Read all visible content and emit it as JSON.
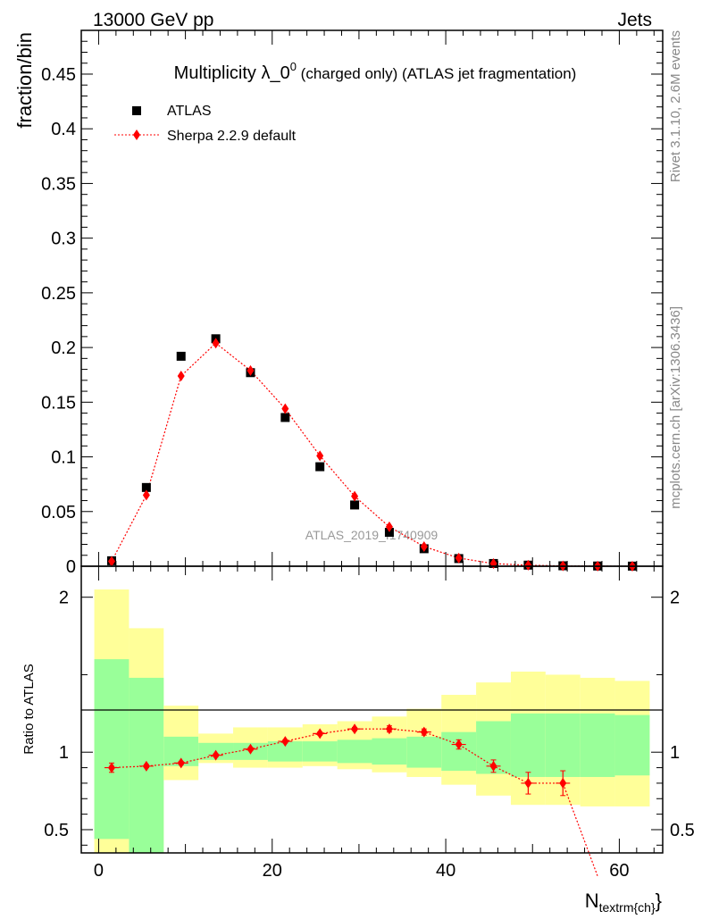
{
  "header": {
    "left": "13000 GeV pp",
    "right": "Jets"
  },
  "side_labels": {
    "rivet": "Rivet 3.1.10,  2.6M events",
    "mcplots": "mcplots.cern.ch [arXiv:1306.3436]"
  },
  "colors": {
    "data": "#000000",
    "mc": "#ff0000",
    "band_inner": "#99ff99",
    "band_outer": "#ffff99"
  },
  "chart_data": [
    {
      "type": "scatter",
      "title": "Multiplicity λ_0^0 (charged only) (ATLAS jet fragmentation)",
      "title_main": "Multiplicity λ_0",
      "title_sup": "0",
      "title_rest": " (charged only) (ATLAS jet fragmentation)",
      "ylabel": "fraction/bin",
      "watermark": "ATLAS_2019_I1740909",
      "xlim": [
        -2,
        65
      ],
      "ylim": [
        0,
        0.49
      ],
      "yticks": [
        "0",
        "0.05",
        "0.1",
        "0.15",
        "0.2",
        "0.25",
        "0.3",
        "0.35",
        "0.4",
        "0.45"
      ],
      "ytick_values": [
        0,
        0.05,
        0.1,
        0.15,
        0.2,
        0.25,
        0.3,
        0.35,
        0.4,
        0.45
      ],
      "legend": [
        {
          "label": "ATLAS",
          "marker": "square"
        },
        {
          "label": "Sherpa 2.2.9 default",
          "marker": "diamond"
        }
      ],
      "series": [
        {
          "name": "ATLAS",
          "x": [
            1.5,
            5.5,
            9.5,
            13.5,
            17.5,
            21.5,
            25.5,
            29.5,
            33.5,
            37.5,
            41.5,
            45.5,
            49.5,
            53.5,
            57.5,
            61.5
          ],
          "y": [
            0.005,
            0.072,
            0.192,
            0.208,
            0.177,
            0.136,
            0.091,
            0.056,
            0.031,
            0.016,
            0.007,
            0.0025,
            0.001,
            0.0004,
            0.0002,
            0.0001
          ]
        },
        {
          "name": "Sherpa 2.2.9 default",
          "x": [
            1.5,
            5.5,
            9.5,
            13.5,
            17.5,
            21.5,
            25.5,
            29.5,
            33.5,
            37.5,
            41.5,
            45.5,
            49.5,
            53.5,
            57.5,
            61.5
          ],
          "y": [
            0.0045,
            0.065,
            0.174,
            0.204,
            0.179,
            0.144,
            0.101,
            0.064,
            0.036,
            0.018,
            0.0075,
            0.0024,
            0.0009,
            0.0003,
            0.0001,
            3e-05
          ]
        }
      ]
    },
    {
      "type": "line",
      "ylabel": "Ratio to ATLAS",
      "xlabel_main": "N",
      "xlabel_sub": "textrm{ch}",
      "xlabel_close": "}",
      "xlim": [
        -2,
        65
      ],
      "ylim": [
        0.35,
        2.2
      ],
      "xticks": [
        "0",
        "20",
        "40",
        "60"
      ],
      "xtick_values": [
        0,
        20,
        40,
        60
      ],
      "yticks": [
        "0.5",
        "1",
        "2"
      ],
      "ytick_values": [
        0.5,
        1,
        2
      ],
      "bin_edges": [
        -0.5,
        3.5,
        7.5,
        11.5,
        15.5,
        19.5,
        23.5,
        27.5,
        31.5,
        35.5,
        39.5,
        43.5,
        47.5,
        51.5,
        55.5,
        59.5,
        63.5
      ],
      "band_inner_lo": [
        0.44,
        0.35,
        0.91,
        0.95,
        0.95,
        0.94,
        0.94,
        0.93,
        0.92,
        0.9,
        0.88,
        0.86,
        0.84,
        0.84,
        0.84,
        0.85
      ],
      "band_inner_hi": [
        1.6,
        1.48,
        1.1,
        1.06,
        1.06,
        1.07,
        1.07,
        1.08,
        1.09,
        1.1,
        1.13,
        1.2,
        1.25,
        1.25,
        1.25,
        1.24
      ],
      "band_outer_lo": [
        0.35,
        0.35,
        0.82,
        0.93,
        0.9,
        0.9,
        0.91,
        0.89,
        0.87,
        0.84,
        0.79,
        0.72,
        0.66,
        0.66,
        0.65,
        0.65
      ],
      "band_outer_hi": [
        2.05,
        1.8,
        1.3,
        1.12,
        1.16,
        1.16,
        1.18,
        1.2,
        1.23,
        1.28,
        1.37,
        1.45,
        1.52,
        1.5,
        1.48,
        1.46
      ],
      "series": [
        {
          "name": "Sherpa 2.2.9 default",
          "x": [
            1.5,
            5.5,
            9.5,
            13.5,
            17.5,
            21.5,
            25.5,
            29.5,
            33.5,
            37.5,
            41.5,
            45.5,
            49.5,
            53.5,
            57.5
          ],
          "y": [
            0.9,
            0.91,
            0.93,
            0.98,
            1.02,
            1.07,
            1.12,
            1.15,
            1.15,
            1.13,
            1.05,
            0.91,
            0.8,
            0.8,
            0.2
          ],
          "yerr": [
            0.03,
            0.01,
            0.01,
            0.01,
            0.01,
            0.01,
            0.01,
            0.01,
            0.02,
            0.02,
            0.03,
            0.04,
            0.07,
            0.08,
            0
          ]
        }
      ]
    }
  ]
}
